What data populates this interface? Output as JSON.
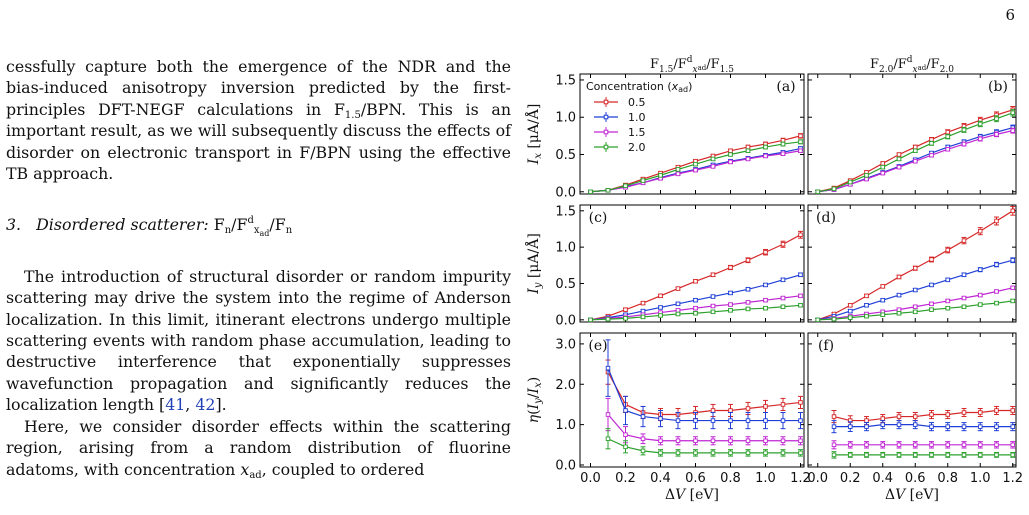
{
  "page_number": "6",
  "text": {
    "para1": "cessfully capture both the emergence of the NDR and the bias-induced anisotropy inversion predicted by the first-principles DFT-NEGF calculations in F1.5/BPN. This is an important result, as we will subsequently discuss the effects of disorder on electronic transport in F/BPN using the effective TB approach.",
    "subsection": "3. Disordered scatterer: Fn/Fdxad/Fn",
    "para2": "The introduction of structural disorder or random impurity scattering may drive the system into the regime of Anderson localization. In this limit, itinerant electrons undergo multiple scattering events with random phase accumulation, leading to destructive interference that exponentially suppresses wavefunction propagation and significantly reduces the localization length [41, 42].",
    "para3": "Here, we consider disorder effects within the scattering region, arising from a random distribution of fluorine adatoms, with concentration xad, coupled to ordered"
  },
  "chart_data": [
    {
      "type": "line",
      "panel": "(a)",
      "column_title": "F1.5/Fdxad/F1.5",
      "ylabel": "Ix [μA/Å]",
      "xlabel": "",
      "ylim": [
        0,
        1.5
      ],
      "x": [
        0,
        0.1,
        0.2,
        0.3,
        0.4,
        0.5,
        0.6,
        0.7,
        0.8,
        0.9,
        1.0,
        1.1,
        1.2
      ],
      "series": [
        {
          "name": "0.5",
          "color": "#d62728",
          "values": [
            0,
            0.02,
            0.09,
            0.17,
            0.25,
            0.33,
            0.41,
            0.48,
            0.55,
            0.6,
            0.64,
            0.69,
            0.75
          ]
        },
        {
          "name": "1.0",
          "color": "#1f3fd6",
          "values": [
            0,
            0.02,
            0.07,
            0.12,
            0.19,
            0.25,
            0.3,
            0.36,
            0.41,
            0.45,
            0.49,
            0.53,
            0.58
          ]
        },
        {
          "name": "1.5",
          "color": "#c026d3",
          "values": [
            0,
            0.02,
            0.06,
            0.12,
            0.18,
            0.24,
            0.29,
            0.34,
            0.4,
            0.44,
            0.48,
            0.51,
            0.55
          ]
        },
        {
          "name": "2.0",
          "color": "#2ca02c",
          "values": [
            0,
            0.02,
            0.08,
            0.15,
            0.22,
            0.3,
            0.37,
            0.44,
            0.5,
            0.55,
            0.6,
            0.64,
            0.67
          ]
        }
      ]
    },
    {
      "type": "line",
      "panel": "(b)",
      "column_title": "F2.0/Fdxad/F2.0",
      "ylabel": "",
      "xlabel": "",
      "ylim": [
        0,
        1.5
      ],
      "x": [
        0,
        0.1,
        0.2,
        0.3,
        0.4,
        0.5,
        0.6,
        0.7,
        0.8,
        0.9,
        1.0,
        1.1,
        1.2
      ],
      "series": [
        {
          "name": "0.5",
          "color": "#d62728",
          "values": [
            0,
            0.05,
            0.15,
            0.26,
            0.38,
            0.5,
            0.6,
            0.7,
            0.8,
            0.88,
            0.96,
            1.03,
            1.1
          ]
        },
        {
          "name": "1.0",
          "color": "#1f3fd6",
          "values": [
            0,
            0.03,
            0.1,
            0.18,
            0.26,
            0.34,
            0.43,
            0.52,
            0.6,
            0.67,
            0.74,
            0.8,
            0.86
          ]
        },
        {
          "name": "1.5",
          "color": "#c026d3",
          "values": [
            0,
            0.03,
            0.1,
            0.17,
            0.25,
            0.33,
            0.41,
            0.49,
            0.57,
            0.64,
            0.71,
            0.77,
            0.82
          ]
        },
        {
          "name": "2.0",
          "color": "#2ca02c",
          "values": [
            0,
            0.04,
            0.13,
            0.22,
            0.33,
            0.44,
            0.55,
            0.65,
            0.74,
            0.83,
            0.91,
            0.98,
            1.06
          ]
        }
      ]
    },
    {
      "type": "line",
      "panel": "(c)",
      "ylabel": "Iy [μA/Å]",
      "xlabel": "",
      "ylim": [
        0,
        1.5
      ],
      "x": [
        0,
        0.1,
        0.2,
        0.3,
        0.4,
        0.5,
        0.6,
        0.7,
        0.8,
        0.9,
        1.0,
        1.1,
        1.2
      ],
      "series": [
        {
          "name": "0.5",
          "color": "#d62728",
          "values": [
            0,
            0.05,
            0.14,
            0.23,
            0.33,
            0.43,
            0.53,
            0.62,
            0.72,
            0.82,
            0.93,
            1.04,
            1.17
          ]
        },
        {
          "name": "1.0",
          "color": "#1f3fd6",
          "values": [
            0,
            0.03,
            0.07,
            0.12,
            0.17,
            0.22,
            0.27,
            0.32,
            0.37,
            0.42,
            0.48,
            0.55,
            0.62
          ]
        },
        {
          "name": "1.5",
          "color": "#c026d3",
          "values": [
            0,
            0.02,
            0.04,
            0.07,
            0.1,
            0.13,
            0.16,
            0.19,
            0.21,
            0.24,
            0.27,
            0.3,
            0.33
          ]
        },
        {
          "name": "2.0",
          "color": "#2ca02c",
          "values": [
            0,
            0.01,
            0.02,
            0.04,
            0.06,
            0.08,
            0.09,
            0.11,
            0.13,
            0.15,
            0.16,
            0.18,
            0.2
          ]
        }
      ]
    },
    {
      "type": "line",
      "panel": "(d)",
      "ylabel": "",
      "xlabel": "",
      "ylim": [
        0,
        1.5
      ],
      "x": [
        0,
        0.1,
        0.2,
        0.3,
        0.4,
        0.5,
        0.6,
        0.7,
        0.8,
        0.9,
        1.0,
        1.1,
        1.2
      ],
      "series": [
        {
          "name": "0.5",
          "color": "#d62728",
          "values": [
            0,
            0.08,
            0.2,
            0.33,
            0.46,
            0.59,
            0.71,
            0.83,
            0.96,
            1.09,
            1.22,
            1.36,
            1.5
          ]
        },
        {
          "name": "1.0",
          "color": "#1f3fd6",
          "values": [
            0,
            0.05,
            0.12,
            0.2,
            0.27,
            0.34,
            0.41,
            0.48,
            0.55,
            0.62,
            0.69,
            0.76,
            0.82
          ]
        },
        {
          "name": "1.5",
          "color": "#c026d3",
          "values": [
            0,
            0.02,
            0.05,
            0.08,
            0.11,
            0.14,
            0.18,
            0.22,
            0.26,
            0.3,
            0.34,
            0.39,
            0.44
          ]
        },
        {
          "name": "2.0",
          "color": "#2ca02c",
          "values": [
            0,
            0.01,
            0.03,
            0.05,
            0.07,
            0.09,
            0.11,
            0.14,
            0.16,
            0.18,
            0.21,
            0.23,
            0.26
          ]
        }
      ]
    },
    {
      "type": "line",
      "panel": "(e)",
      "ylabel": "η(Iy/Ix)",
      "xlabel": "ΔV [eV]",
      "ylim": [
        0,
        3.25
      ],
      "x": [
        0.1,
        0.2,
        0.3,
        0.4,
        0.5,
        0.6,
        0.7,
        0.8,
        0.9,
        1.0,
        1.1,
        1.2
      ],
      "series": [
        {
          "name": "0.5",
          "color": "#d62728",
          "values": [
            2.3,
            1.5,
            1.3,
            1.25,
            1.25,
            1.3,
            1.35,
            1.35,
            1.4,
            1.45,
            1.5,
            1.55
          ]
        },
        {
          "name": "1.0",
          "color": "#1f3fd6",
          "values": [
            2.4,
            1.35,
            1.2,
            1.15,
            1.1,
            1.1,
            1.1,
            1.1,
            1.1,
            1.1,
            1.1,
            1.1
          ]
        },
        {
          "name": "1.5",
          "color": "#c026d3",
          "values": [
            1.25,
            0.75,
            0.65,
            0.6,
            0.6,
            0.6,
            0.6,
            0.6,
            0.6,
            0.6,
            0.6,
            0.6
          ]
        },
        {
          "name": "2.0",
          "color": "#2ca02c",
          "values": [
            0.65,
            0.45,
            0.35,
            0.3,
            0.3,
            0.3,
            0.3,
            0.3,
            0.3,
            0.3,
            0.3,
            0.3
          ]
        }
      ],
      "error_bars": {
        "0.5": [
          0.3,
          0.2,
          0.15,
          0.15,
          0.15,
          0.15,
          0.15,
          0.15,
          0.15,
          0.15,
          0.15,
          0.15
        ],
        "1.0": [
          0.7,
          0.35,
          0.25,
          0.2,
          0.2,
          0.2,
          0.2,
          0.2,
          0.2,
          0.2,
          0.2,
          0.2
        ],
        "1.5": [
          0.4,
          0.2,
          0.12,
          0.1,
          0.1,
          0.1,
          0.1,
          0.1,
          0.1,
          0.1,
          0.1,
          0.1
        ],
        "2.0": [
          0.25,
          0.15,
          0.1,
          0.08,
          0.08,
          0.08,
          0.08,
          0.08,
          0.08,
          0.08,
          0.08,
          0.08
        ]
      }
    },
    {
      "type": "line",
      "panel": "(f)",
      "ylabel": "",
      "xlabel": "ΔV [eV]",
      "ylim": [
        0,
        3.25
      ],
      "x": [
        0.1,
        0.2,
        0.3,
        0.4,
        0.5,
        0.6,
        0.7,
        0.8,
        0.9,
        1.0,
        1.1,
        1.2
      ],
      "series": [
        {
          "name": "0.5",
          "color": "#d62728",
          "values": [
            1.2,
            1.1,
            1.1,
            1.15,
            1.2,
            1.2,
            1.25,
            1.25,
            1.3,
            1.3,
            1.35,
            1.35
          ]
        },
        {
          "name": "1.0",
          "color": "#1f3fd6",
          "values": [
            0.95,
            0.95,
            0.95,
            1.0,
            1.0,
            1.0,
            0.95,
            0.95,
            0.95,
            0.95,
            0.95,
            0.95
          ]
        },
        {
          "name": "1.5",
          "color": "#c026d3",
          "values": [
            0.5,
            0.5,
            0.5,
            0.5,
            0.5,
            0.5,
            0.5,
            0.5,
            0.5,
            0.5,
            0.5,
            0.5
          ]
        },
        {
          "name": "2.0",
          "color": "#2ca02c",
          "values": [
            0.25,
            0.25,
            0.25,
            0.25,
            0.25,
            0.25,
            0.25,
            0.25,
            0.25,
            0.25,
            0.25,
            0.25
          ]
        }
      ],
      "error_bars": {
        "0.5": [
          0.15,
          0.12,
          0.1,
          0.1,
          0.1,
          0.1,
          0.1,
          0.1,
          0.1,
          0.1,
          0.1,
          0.1
        ],
        "1.0": [
          0.15,
          0.12,
          0.1,
          0.1,
          0.1,
          0.1,
          0.1,
          0.1,
          0.1,
          0.1,
          0.1,
          0.1
        ],
        "1.5": [
          0.1,
          0.08,
          0.08,
          0.08,
          0.08,
          0.08,
          0.08,
          0.08,
          0.08,
          0.08,
          0.08,
          0.08
        ],
        "2.0": [
          0.08,
          0.06,
          0.06,
          0.06,
          0.06,
          0.06,
          0.06,
          0.06,
          0.06,
          0.06,
          0.06,
          0.06
        ]
      }
    }
  ],
  "figure": {
    "legend_title": "Concentration (xad)",
    "xticks": [
      "0.0",
      "0.2",
      "0.4",
      "0.6",
      "0.8",
      "1.0",
      "1.2"
    ],
    "yticks_current": [
      "0.0",
      "0.5",
      "1.0",
      "1.5"
    ],
    "yticks_eta": [
      "0.0",
      "1.0",
      "2.0",
      "3.0"
    ]
  }
}
